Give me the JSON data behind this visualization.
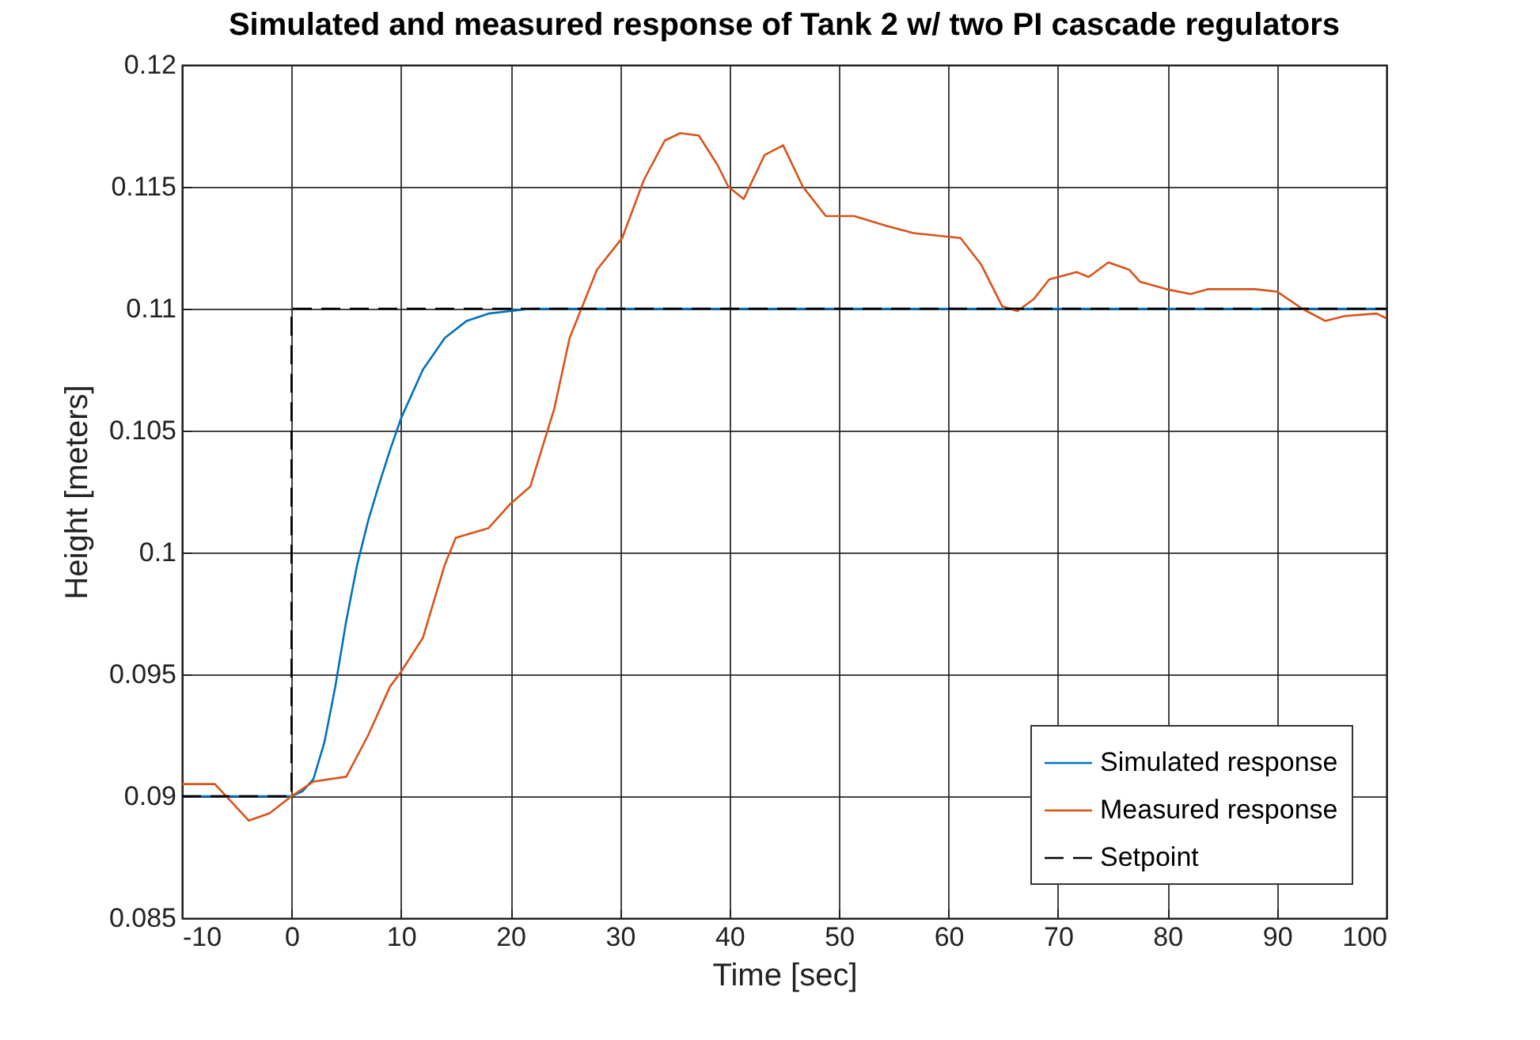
{
  "chart_data": {
    "type": "line",
    "title": "Simulated and measured response of Tank 2 w/ two PI cascade regulators",
    "xlabel": "Time [sec]",
    "ylabel": "Height [meters]",
    "xlim": [
      -10,
      100
    ],
    "xticks": [
      -10,
      0,
      10,
      20,
      30,
      40,
      50,
      60,
      70,
      80,
      90,
      100
    ],
    "ylim": [
      0.085,
      0.12
    ],
    "yticks": [
      0.085,
      0.09,
      0.095,
      0.1,
      0.105,
      0.11,
      0.115,
      0.12
    ],
    "grid": true,
    "legend": "bottom right",
    "series": [
      {
        "name": "Simulated response",
        "color": "#0072bd",
        "line_style": "solid",
        "x": [
          -10,
          0,
          1,
          2,
          3,
          4,
          5,
          6,
          7,
          8,
          9,
          10,
          12,
          14,
          16,
          18,
          20,
          22,
          25,
          100
        ],
        "values": [
          0.09,
          0.09,
          0.0902,
          0.0907,
          0.0922,
          0.0945,
          0.0972,
          0.0995,
          0.1013,
          0.1028,
          0.1042,
          0.1055,
          0.1075,
          0.1088,
          0.1095,
          0.1098,
          0.1099,
          0.11,
          0.11,
          0.11
        ]
      },
      {
        "name": "Measured response",
        "color": "#d95319",
        "line_style": "solid",
        "x": [
          -10,
          -7,
          -3.9,
          -2,
          0,
          2,
          5,
          7,
          9,
          10,
          12,
          14,
          15,
          18,
          20,
          21.8,
          24,
          25.4,
          27.9,
          30.2,
          32.2,
          34.1,
          35.5,
          37.2,
          38.9,
          39.9,
          41.3,
          43.2,
          44.9,
          46.7,
          48.8,
          51.4,
          54.3,
          56.8,
          61.1,
          63,
          64.9,
          66.3,
          67.8,
          69.2,
          71.7,
          72.8,
          74.6,
          76.5,
          77.5,
          79.9,
          82.1,
          83.7,
          88,
          90,
          92.3,
          94.4,
          96.2,
          99.1,
          100
        ],
        "values": [
          0.0905,
          0.0905,
          0.089,
          0.0893,
          0.09,
          0.0906,
          0.0908,
          0.0925,
          0.0945,
          0.0951,
          0.0965,
          0.0995,
          0.1006,
          0.101,
          0.102,
          0.1027,
          0.1059,
          0.1088,
          0.1116,
          0.1129,
          0.1153,
          0.1169,
          0.1172,
          0.1171,
          0.1159,
          0.115,
          0.1145,
          0.1163,
          0.1167,
          0.115,
          0.1138,
          0.1138,
          0.1134,
          0.1131,
          0.1129,
          0.1118,
          0.1101,
          0.1099,
          0.1104,
          0.1112,
          0.1115,
          0.1113,
          0.1119,
          0.1116,
          0.1111,
          0.1108,
          0.1106,
          0.1108,
          0.1108,
          0.1107,
          0.11,
          0.1095,
          0.1097,
          0.1098,
          0.1096
        ]
      },
      {
        "name": "Setpoint",
        "color": "#000000",
        "line_style": "dashed",
        "x": [
          -10,
          0,
          0,
          100
        ],
        "values": [
          0.09,
          0.09,
          0.11,
          0.11
        ]
      }
    ]
  }
}
